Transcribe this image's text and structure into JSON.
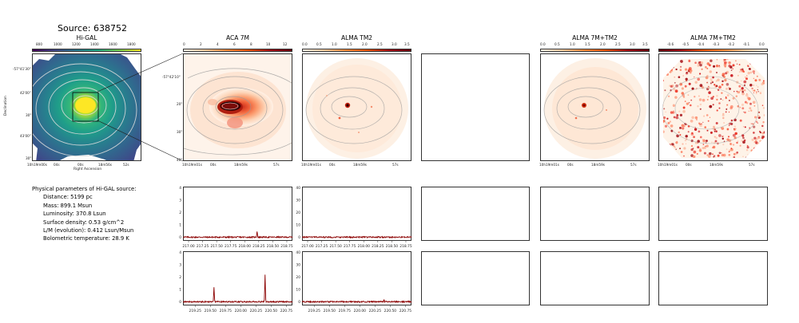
{
  "source_title": "Source: 638752",
  "panels": {
    "higal": {
      "title": "Hi-GAL",
      "cbar_ticks": [
        "800",
        "1000",
        "1200",
        "1400",
        "1600",
        "1800"
      ],
      "xlabel": "Right Ascension",
      "ylabel": "Declination",
      "xticks": [
        "10h19m00s",
        "04s",
        "00s",
        "18m56s",
        "52s"
      ],
      "yticks": [
        "-57°41'30\"",
        "42'00\"",
        "30\"",
        "43'00\"",
        "30\""
      ]
    },
    "aca": {
      "title": "ACA 7M",
      "cbar_ticks": [
        "0",
        "2",
        "4",
        "6",
        "8",
        "10",
        "12"
      ],
      "xticks": [
        "10h19m01s",
        "00s",
        "18m59s",
        "57s"
      ],
      "yticks": [
        "-57°42'10\"",
        "20\"",
        "30\"",
        "40\""
      ]
    },
    "tm2": {
      "title": "ALMA TM2",
      "cbar_ticks": [
        "0.0",
        "0.5",
        "1.0",
        "1.5",
        "2.0",
        "2.5",
        "3.0",
        "3.5"
      ],
      "xticks": [
        "10h19m01s",
        "00s",
        "18m59s",
        "57s"
      ]
    },
    "combo": {
      "title": "ALMA 7M+TM2",
      "cbar_ticks": [
        "0.0",
        "0.5",
        "1.0",
        "1.5",
        "2.0",
        "2.5",
        "3.0",
        "3.5"
      ],
      "xticks": [
        "10h19m01s",
        "00s",
        "18m59s",
        "57s"
      ]
    },
    "combo2": {
      "title": "ALMA 7M+TM2",
      "cbar_ticks": [
        "-0.6",
        "-0.5",
        "-0.4",
        "-0.3",
        "-0.2",
        "-0.1",
        "0.0"
      ],
      "xticks": [
        "10h19m01s",
        "00s",
        "18m59s",
        "57s"
      ]
    }
  },
  "params": {
    "heading": "Physical parameters of Hi-GAL source:",
    "lines": [
      "Distance: 5199 pc",
      "Mass: 899.1 Msun",
      "Luminosity: 370.8 Lsun",
      "Surface density: 0.53 g/cm^2",
      "L/M (evolution): 0.412 Lsun/Msun",
      "Bolometric temperature: 28.9 K"
    ]
  },
  "chart_data": [
    {
      "type": "line",
      "panel": "spectrum-aca-row1",
      "x_ticks": [
        "217.00",
        "217.25",
        "217.50",
        "217.75",
        "218.00",
        "218.25",
        "218.50",
        "218.75"
      ],
      "xlim": [
        216.9,
        218.85
      ],
      "y_ticks": [
        "0",
        "1",
        "2",
        "3",
        "4"
      ],
      "ylim": [
        -0.3,
        4.1
      ],
      "baseline": 0,
      "peaks": [
        {
          "x": 218.22,
          "y": 0.5
        }
      ],
      "color": "#8b0000"
    },
    {
      "type": "line",
      "panel": "spectrum-tm2-row1",
      "x_ticks": [
        "217.00",
        "217.25",
        "217.50",
        "217.75",
        "218.00",
        "218.25",
        "218.50",
        "218.75"
      ],
      "xlim": [
        216.9,
        218.85
      ],
      "y_ticks": [
        "0",
        "10",
        "20",
        "30",
        "40"
      ],
      "ylim": [
        -3,
        41
      ],
      "baseline": 0,
      "peaks": [],
      "color": "#8b0000"
    },
    {
      "type": "line",
      "panel": "spectrum-aca-row2",
      "x_ticks": [
        "219.25",
        "219.50",
        "219.75",
        "220.00",
        "220.25",
        "220.50",
        "220.75"
      ],
      "xlim": [
        219.05,
        220.85
      ],
      "y_ticks": [
        "0",
        "1",
        "2",
        "3",
        "4"
      ],
      "ylim": [
        -0.3,
        4.1
      ],
      "baseline": 0,
      "peaks": [
        {
          "x": 219.56,
          "y": 1.2
        },
        {
          "x": 220.4,
          "y": 2.2
        }
      ],
      "color": "#8b0000"
    },
    {
      "type": "line",
      "panel": "spectrum-tm2-row2",
      "x_ticks": [
        "219.25",
        "219.50",
        "219.75",
        "220.00",
        "220.25",
        "220.50",
        "220.75"
      ],
      "xlim": [
        219.05,
        220.85
      ],
      "y_ticks": [
        "0",
        "10",
        "20",
        "30",
        "40"
      ],
      "ylim": [
        -3,
        41
      ],
      "baseline": 0,
      "peaks": [
        {
          "x": 220.4,
          "y": 1.5
        }
      ],
      "color": "#8b0000"
    }
  ]
}
